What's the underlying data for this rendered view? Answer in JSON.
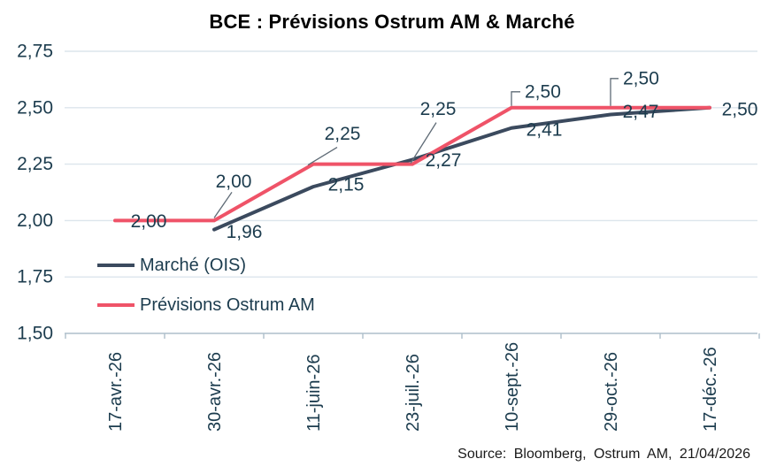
{
  "title": "BCE : Prévisions Ostrum AM & Marché",
  "source": "Source: Bloomberg, Ostrum AM, 21/04/2026",
  "colors": {
    "marche_line": "#3B4A5E",
    "ostrum_line": "#EF5368",
    "label_text": "#1C3C4E",
    "gridline": "#DCE5EC",
    "axis_line": "#AEBFCB",
    "leader_line": "#5F6B76",
    "title_text": "#000000"
  },
  "chart_data": {
    "type": "line",
    "title": "BCE : Prévisions Ostrum AM & Marché",
    "categories": [
      "17-avr.-26",
      "30-avr.-26",
      "11-juin-26",
      "23-juil.-26",
      "10-sept.-26",
      "29-oct.-26",
      "17-déc.-26"
    ],
    "y_axis": {
      "min": 1.5,
      "max": 2.75,
      "step": 0.25,
      "tick_labels": [
        "1,50",
        "1,75",
        "2,00",
        "2,25",
        "2,50",
        "2,75"
      ]
    },
    "grid": true,
    "legend_position": "middle-left",
    "series": [
      {
        "name": "Marché (OIS)",
        "color_key": "marche_line",
        "values": [
          null,
          1.96,
          2.15,
          2.27,
          2.41,
          2.47,
          2.5
        ],
        "point_labels": [
          "",
          "1,96",
          "2,15",
          "2,27",
          "2,41",
          "2,47",
          ""
        ]
      },
      {
        "name": "Prévisions Ostrum AM",
        "color_key": "ostrum_line",
        "values": [
          2.0,
          2.0,
          2.25,
          2.25,
          2.5,
          2.5,
          2.5
        ],
        "point_labels": [
          "2,00",
          "2,00",
          "2,25",
          "2,25",
          "2,50",
          "2,50",
          "2,50"
        ]
      }
    ]
  }
}
